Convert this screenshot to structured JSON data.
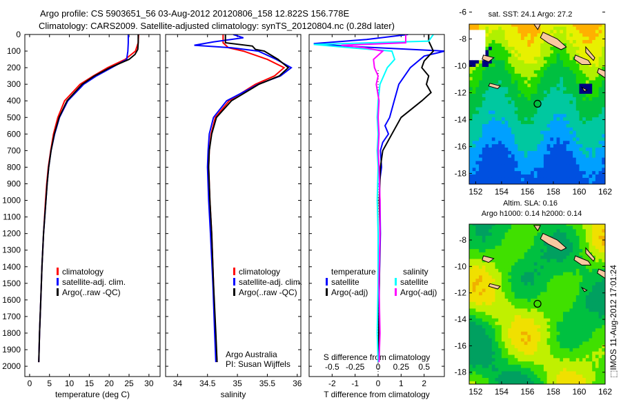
{
  "title": {
    "line1": "Argo profile: CS 5903651_56 03-Aug-2012 20120806_158 12.822S 156.778E",
    "line2": "Climatology: CARS2009. Satellite-adjusted climatology: synTS_20120804.nc (0.28d later)"
  },
  "watermark": "⬚IMOS 11-Aug-2012 17:01:24",
  "colors": {
    "climatology": "#ff0000",
    "satellite": "#0000ff",
    "argo": "#000000",
    "sal_satellite": "#00ffff",
    "sal_argo": "#ff00ff",
    "land": "#f8c8a0"
  },
  "chart_data": [
    {
      "type": "line",
      "name": "temperature",
      "xlabel": "temperature (deg C)",
      "ylabel": "",
      "xlim": [
        -1.2,
        32.8
      ],
      "ylim": [
        2062,
        0
      ],
      "xticks": [
        "0",
        "5",
        "10",
        "15",
        "20",
        "25",
        "30"
      ],
      "xtick_values": [
        0,
        5,
        10,
        15,
        20,
        25,
        30
      ],
      "yticks": [
        "0",
        "100",
        "200",
        "300",
        "400",
        "500",
        "600",
        "700",
        "800",
        "900",
        "1000",
        "1100",
        "1200",
        "1300",
        "1400",
        "1500",
        "1600",
        "1700",
        "1800",
        "1900",
        "2000"
      ],
      "ytick_values": [
        0,
        100,
        200,
        300,
        400,
        500,
        600,
        700,
        800,
        900,
        1000,
        1100,
        1200,
        1300,
        1400,
        1500,
        1600,
        1700,
        1800,
        1900,
        2000
      ],
      "legend": [
        "climatology",
        "satellite-adj. clim.",
        "Argo(..raw -QC)"
      ],
      "series": [
        {
          "name": "climatology",
          "color": "#ff0000",
          "depth": [
            0,
            50,
            100,
            150,
            200,
            250,
            300,
            400,
            500,
            600,
            700,
            800,
            900,
            1000,
            1200,
            1400,
            1600,
            1800,
            1975
          ],
          "values": [
            27.4,
            27.3,
            26.6,
            24.0,
            19.6,
            16.0,
            12.7,
            8.8,
            7.1,
            6.0,
            5.3,
            4.7,
            4.3,
            4.0,
            3.5,
            3.1,
            2.8,
            2.5,
            2.3
          ]
        },
        {
          "name": "satellite-adj. clim.",
          "color": "#0000ff",
          "depth": [
            0,
            50,
            100,
            150,
            200,
            250,
            300,
            400,
            500,
            600,
            700,
            800,
            900,
            1000,
            1200,
            1400,
            1600,
            1800,
            1975
          ],
          "values": [
            24.8,
            24.8,
            24.7,
            24.4,
            20.6,
            16.8,
            13.6,
            9.6,
            7.5,
            6.3,
            5.4,
            4.8,
            4.4,
            4.1,
            3.5,
            3.1,
            2.8,
            2.5,
            2.3
          ]
        },
        {
          "name": "Argo(..raw -QC)",
          "color": "#000000",
          "depth": [
            0,
            50,
            90,
            120,
            150,
            200,
            250,
            300,
            400,
            500,
            600,
            700,
            800,
            900,
            1000,
            1200,
            1400,
            1600,
            1800,
            1975
          ],
          "values": [
            27.3,
            27.3,
            27.2,
            26.5,
            25.0,
            20.2,
            16.3,
            13.2,
            9.4,
            7.4,
            6.2,
            5.4,
            4.8,
            4.4,
            4.1,
            3.5,
            3.1,
            2.8,
            2.5,
            2.3
          ]
        }
      ]
    },
    {
      "type": "line",
      "name": "salinity",
      "xlabel": "salinity",
      "xlim": [
        33.8,
        36.06
      ],
      "ylim": [
        2062,
        0
      ],
      "xticks": [
        "34",
        "34.5",
        "35",
        "35.5",
        "36"
      ],
      "xtick_values": [
        34,
        34.5,
        35,
        35.5,
        36
      ],
      "legend": [
        "climatology",
        "satellite-adj. clim.",
        "Argo(..raw -QC)"
      ],
      "annotation": [
        "Argo Australia",
        "PI: Susan Wijffels"
      ],
      "series": [
        {
          "name": "climatology",
          "color": "#ff0000",
          "depth": [
            0,
            50,
            80,
            100,
            150,
            200,
            250,
            300,
            400,
            500,
            600,
            700,
            800,
            1000,
            1200,
            1500,
            1800,
            1975
          ],
          "values": [
            34.76,
            34.76,
            34.85,
            35.1,
            35.5,
            35.78,
            35.62,
            35.3,
            34.86,
            34.63,
            34.56,
            34.53,
            34.52,
            34.54,
            34.57,
            34.6,
            34.63,
            34.66
          ]
        },
        {
          "name": "satellite-adj. clim.",
          "color": "#0000ff",
          "depth": [
            0,
            20,
            45,
            65,
            80,
            100,
            150,
            200,
            250,
            300,
            400,
            500,
            600,
            700,
            800,
            1000,
            1200,
            1500,
            1800,
            1975
          ],
          "values": [
            34.93,
            35.1,
            34.6,
            34.28,
            34.9,
            35.35,
            35.65,
            35.9,
            35.72,
            35.35,
            34.82,
            34.6,
            34.53,
            34.51,
            34.5,
            34.52,
            34.55,
            34.59,
            34.62,
            34.64
          ]
        },
        {
          "name": "Argo(..raw -QC)",
          "color": "#000000",
          "depth": [
            0,
            50,
            70,
            90,
            100,
            150,
            200,
            250,
            300,
            400,
            500,
            600,
            700,
            800,
            1000,
            1200,
            1500,
            1800,
            1975
          ],
          "values": [
            34.8,
            34.8,
            35.25,
            35.3,
            35.45,
            35.68,
            35.85,
            35.7,
            35.36,
            34.9,
            34.65,
            34.57,
            34.53,
            34.52,
            34.54,
            34.57,
            34.6,
            34.64,
            34.66
          ]
        }
      ]
    },
    {
      "type": "line",
      "name": "differences",
      "xlabel": "T difference from climatology",
      "xlabel2": "S difference from climatology",
      "xlim": [
        -3.0,
        2.88
      ],
      "xlim_salinity": [
        -0.75,
        0.72
      ],
      "xticks": [
        "-2",
        "-1",
        "0",
        "1",
        "2"
      ],
      "xtick_values": [
        -2,
        -1,
        0,
        1,
        2
      ],
      "xticks2": [
        "-0.5",
        "-0.25",
        "0",
        "0.25",
        "0.5"
      ],
      "xtick2_values": [
        -0.5,
        -0.25,
        0,
        0.25,
        0.5
      ],
      "legend_titles": [
        "temperature",
        "salinity"
      ],
      "legend": [
        "satellite",
        "Argo(-adj)",
        "satellite",
        "Argo(-adj)"
      ],
      "series": [
        {
          "name": "T satellite",
          "color": "#0000ff",
          "units": "T",
          "depth": [
            0,
            30,
            55,
            70,
            100,
            130,
            200,
            300,
            400,
            500,
            550,
            600,
            650,
            700,
            800,
            900,
            1000,
            1200,
            1500,
            1800,
            1975
          ],
          "values": [
            1.3,
            -0.5,
            -2.8,
            -1.5,
            2.9,
            2.0,
            1.4,
            0.9,
            0.7,
            0.5,
            0.3,
            0.45,
            0.2,
            0.1,
            0.15,
            0.05,
            0.08,
            0.1,
            0.05,
            0.03,
            0.0
          ]
        },
        {
          "name": "T Argo(-adj)",
          "color": "#000000",
          "units": "T",
          "depth": [
            0,
            40,
            70,
            100,
            130,
            160,
            200,
            250,
            300,
            350,
            400,
            500,
            600,
            700,
            800,
            1000,
            1200,
            1500,
            1800,
            1975
          ],
          "values": [
            2.2,
            2.2,
            2.3,
            2.4,
            2.2,
            2.0,
            1.9,
            2.2,
            2.1,
            2.3,
            1.9,
            1.0,
            0.6,
            0.2,
            0.1,
            0.05,
            0.08,
            0.05,
            0.03,
            0.0
          ]
        },
        {
          "name": "S satellite",
          "color": "#00ffff",
          "units": "S",
          "depth": [
            0,
            40,
            60,
            80,
            100,
            150,
            200,
            300,
            400,
            500,
            600,
            700,
            800,
            1000,
            1200,
            1500,
            1800,
            1975
          ],
          "values": [
            0.6,
            0.55,
            -0.7,
            -0.3,
            0.15,
            0.18,
            0.1,
            0.02,
            0.0,
            -0.01,
            0.0,
            -0.01,
            0.0,
            -0.01,
            0.0,
            0.0,
            -0.01,
            0.0
          ]
        },
        {
          "name": "S Argo(-adj)",
          "color": "#ff00ff",
          "units": "S",
          "depth": [
            0,
            50,
            65,
            80,
            100,
            150,
            200,
            250,
            300,
            400,
            500,
            600,
            700,
            800,
            1000,
            1200,
            1500,
            1800,
            1975
          ],
          "values": [
            0.3,
            0.3,
            -0.4,
            -0.15,
            0.05,
            -0.05,
            -0.04,
            0.0,
            -0.02,
            0.01,
            0.0,
            0.01,
            0.0,
            0.01,
            0.02,
            0.02,
            0.01,
            0.02,
            0.01
          ]
        }
      ]
    },
    {
      "type": "heatmap",
      "name": "sst-map",
      "title": "sat. SST: 24.1 Argo: 27.2",
      "xlim": [
        151.5,
        162
      ],
      "ylim": [
        -18.8,
        -6.9
      ],
      "xticks": [
        "152",
        "154",
        "156",
        "158",
        "160",
        "162"
      ],
      "xtick_values": [
        152,
        154,
        156,
        158,
        160,
        162
      ],
      "yticks": [
        "-6",
        "-8",
        "-10",
        "-12",
        "-14",
        "-16",
        "-18"
      ],
      "ytick_values": [
        -6,
        -8,
        -10,
        -12,
        -14,
        -16,
        -18
      ],
      "marker": {
        "lon": 156.778,
        "lat": -12.822
      }
    },
    {
      "type": "heatmap",
      "name": "sla-map",
      "title": "Altim. SLA: 0.16",
      "subtitle": "Argo h1000: 0.14 h2000: 0.14",
      "xlim": [
        151.5,
        162
      ],
      "ylim": [
        -18.9,
        -6.8
      ],
      "xticks": [
        "152",
        "154",
        "156",
        "158",
        "160",
        "162"
      ],
      "xtick_values": [
        152,
        154,
        156,
        158,
        160,
        162
      ],
      "yticks": [
        "-8",
        "-10",
        "-12",
        "-14",
        "-16",
        "-18"
      ],
      "ytick_values": [
        -8,
        -10,
        -12,
        -14,
        -16,
        -18
      ],
      "marker": {
        "lon": 156.778,
        "lat": -12.822
      }
    }
  ]
}
